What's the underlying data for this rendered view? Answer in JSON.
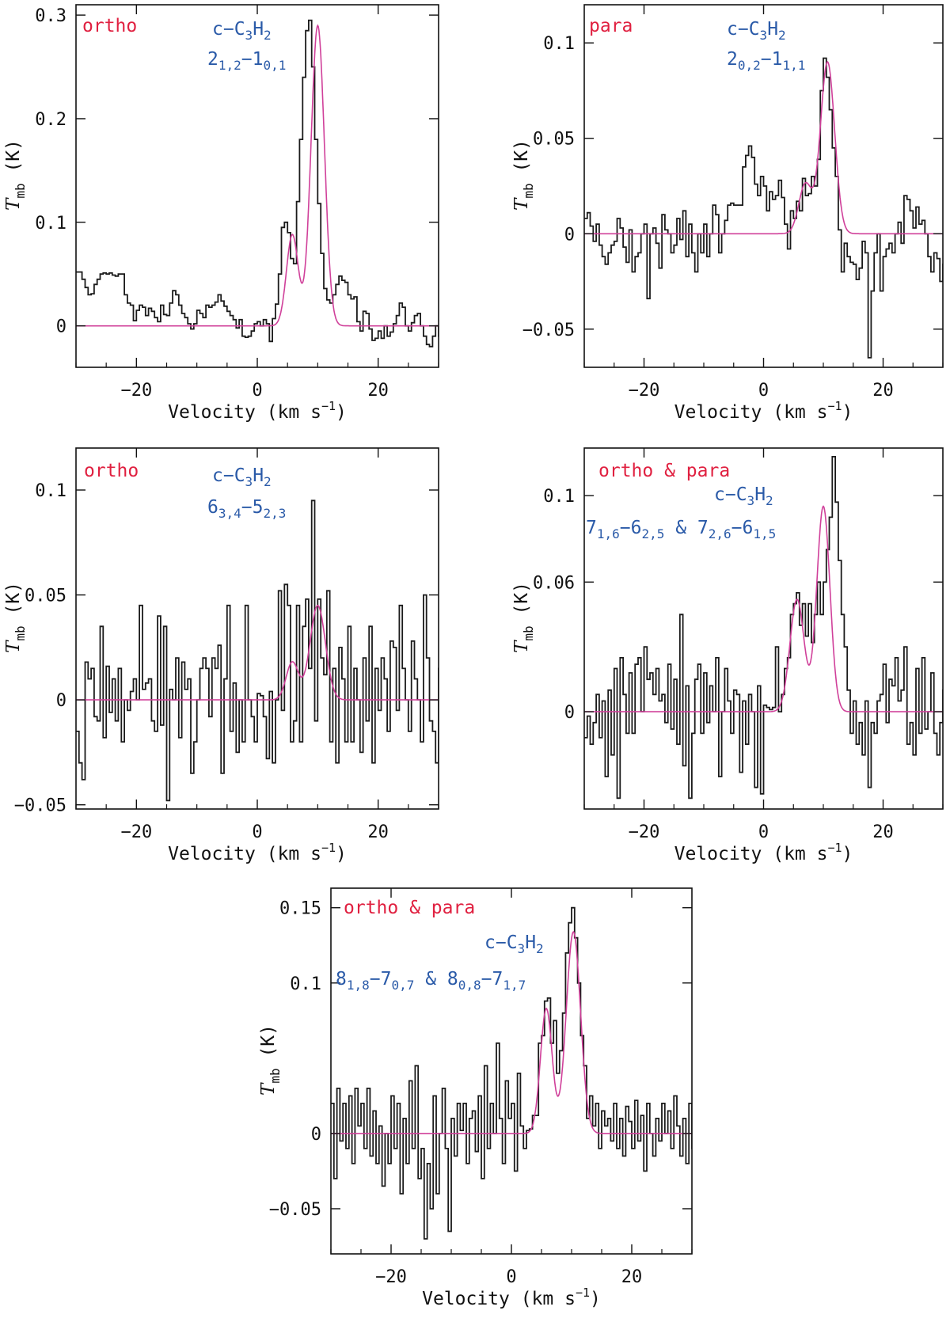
{
  "colors": {
    "axis": "#111111",
    "spectrum": "#1a1a1a",
    "fit": "#d0409a",
    "tag": "#e02040",
    "molecule": "#2a5aa8"
  },
  "chart_data": [
    {
      "type": "line",
      "id": "p1",
      "tag": "ortho",
      "molecule": {
        "prefix": "c−C",
        "sub1": "3",
        "mid": "H",
        "sub2": "2"
      },
      "transition": [
        {
          "t": "2",
          "sub": "1,2"
        },
        {
          "t": "−1",
          "sub": "0,1"
        }
      ],
      "xlabel": "Velocity (km s",
      "xlabel_sup": "−1",
      "xlabel_end": ")",
      "ylabel": "T",
      "ylabel_sub": "mb",
      "ylabel_unit": " (K)",
      "xlim": [
        -30,
        30
      ],
      "ylim": [
        -0.04,
        0.31
      ],
      "xticks": [
        -20,
        0,
        20
      ],
      "xtick_labels": [
        "−20",
        "0",
        "20"
      ],
      "yticks": [
        0,
        0.1,
        0.2,
        0.3
      ],
      "ytick_labels": [
        "0",
        "0.1",
        "0.2",
        "0.3"
      ],
      "fit": [
        {
          "amp": 0.088,
          "v0": 5.8,
          "fwhm": 2.3
        },
        {
          "amp": 0.29,
          "v0": 10.0,
          "fwhm": 2.6
        }
      ],
      "series": [
        {
          "name": "spectrum",
          "x0": -30,
          "dx": 0.5,
          "values": [
            0.052,
            0.052,
            0.045,
            0.037,
            0.03,
            0.031,
            0.04,
            0.045,
            0.05,
            0.051,
            0.05,
            0.051,
            0.049,
            0.048,
            0.05,
            0.05,
            0.03,
            0.022,
            0.02,
            0.005,
            0.015,
            0.02,
            0.018,
            0.01,
            0.017,
            0.014,
            0.008,
            0.004,
            0.02,
            0.011,
            0.01,
            0.022,
            0.034,
            0.03,
            0.02,
            0.012,
            0.008,
            0.002,
            -0.003,
            0.002,
            0.015,
            0.012,
            0.008,
            0.02,
            0.018,
            0.02,
            0.023,
            0.03,
            0.024,
            0.019,
            0.014,
            0.01,
            0.006,
            -0.002,
            0.006,
            -0.01,
            -0.011,
            -0.01,
            -0.005,
            0.002,
            0.004,
            0.0,
            0.006,
            0.002,
            -0.015,
            0.007,
            0.021,
            0.05,
            0.095,
            0.1,
            0.09,
            0.065,
            0.06,
            0.12,
            0.18,
            0.24,
            0.285,
            0.295,
            0.25,
            0.18,
            0.118,
            0.07,
            0.036,
            0.025,
            0.022,
            0.03,
            0.04,
            0.048,
            0.044,
            0.042,
            0.03,
            0.026,
            0.028,
            0.004,
            -0.005,
            0.014,
            0.012,
            -0.003,
            -0.014,
            -0.012,
            -0.005,
            -0.012,
            0.0,
            -0.01,
            -0.006,
            0.002,
            0.01,
            0.022,
            0.018,
            0.0,
            -0.005,
            0.003,
            0.01,
            0.012,
            0.0,
            -0.01,
            -0.018,
            -0.02,
            -0.01,
            0.0,
            -0.01
          ]
        }
      ]
    },
    {
      "type": "line",
      "id": "p2",
      "tag": "para",
      "molecule": {
        "prefix": "c−C",
        "sub1": "3",
        "mid": "H",
        "sub2": "2"
      },
      "transition": [
        {
          "t": "2",
          "sub": "0,2"
        },
        {
          "t": "−1",
          "sub": "1,1"
        }
      ],
      "xlabel": "Velocity (km s",
      "xlabel_sup": "−1",
      "xlabel_end": ")",
      "ylabel": "T",
      "ylabel_sub": "mb",
      "ylabel_unit": " (K)",
      "xlim": [
        -30,
        30
      ],
      "ylim": [
        -0.07,
        0.12
      ],
      "xticks": [
        -20,
        0,
        20
      ],
      "xtick_labels": [
        "−20",
        "0",
        "20"
      ],
      "yticks": [
        -0.05,
        0,
        0.05,
        0.1
      ],
      "ytick_labels": [
        "−0.05",
        "0",
        "0.05",
        "0.1"
      ],
      "fit": [
        {
          "amp": 0.026,
          "v0": 7.0,
          "fwhm": 2.6
        },
        {
          "amp": 0.09,
          "v0": 10.7,
          "fwhm": 2.8
        }
      ],
      "series": [
        {
          "name": "spectrum",
          "x0": -30,
          "dx": 0.5,
          "values": [
            0.008,
            0.011,
            0.004,
            -0.004,
            0.005,
            -0.006,
            -0.012,
            -0.016,
            -0.01,
            -0.006,
            -0.004,
            0.008,
            0.003,
            -0.007,
            -0.015,
            0.002,
            -0.02,
            -0.012,
            -0.01,
            0.0,
            0.005,
            -0.034,
            0.0,
            0.003,
            -0.005,
            -0.018,
            0.01,
            0.002,
            0.0,
            -0.01,
            -0.006,
            0.008,
            -0.003,
            0.012,
            -0.012,
            0.005,
            -0.01,
            -0.02,
            0.0,
            -0.01,
            0.005,
            -0.012,
            0.0,
            0.015,
            0.01,
            -0.01,
            0.0,
            0.007,
            0.015,
            0.016,
            0.015,
            0.015,
            0.015,
            0.035,
            0.041,
            0.046,
            0.04,
            0.026,
            0.02,
            0.03,
            0.025,
            0.012,
            0.022,
            0.018,
            0.02,
            0.028,
            0.019,
            0.005,
            -0.008,
            0.012,
            0.008,
            0.017,
            0.012,
            0.029,
            0.02,
            0.021,
            0.03,
            0.025,
            0.039,
            0.075,
            0.092,
            0.082,
            0.065,
            0.045,
            0.03,
            0.002,
            -0.02,
            -0.005,
            -0.012,
            -0.015,
            -0.016,
            -0.024,
            -0.018,
            -0.004,
            -0.01,
            -0.065,
            -0.03,
            -0.01,
            0.0,
            -0.03,
            -0.012,
            -0.008,
            -0.005,
            -0.01,
            0.0,
            0.006,
            -0.005,
            0.02,
            0.018,
            0.012,
            0.003,
            0.014,
            0.005,
            0.007,
            0.0,
            -0.012,
            -0.02,
            -0.01,
            -0.013,
            -0.025,
            -0.016
          ]
        }
      ]
    },
    {
      "type": "line",
      "id": "p3",
      "tag": "ortho",
      "molecule": {
        "prefix": "c−C",
        "sub1": "3",
        "mid": "H",
        "sub2": "2"
      },
      "transition": [
        {
          "t": "6",
          "sub": "3,4"
        },
        {
          "t": "−5",
          "sub": "2,3"
        }
      ],
      "xlabel": "Velocity (km s",
      "xlabel_sup": "−1",
      "xlabel_end": ")",
      "ylabel": "T",
      "ylabel_sub": "mb",
      "ylabel_unit": " (K)",
      "xlim": [
        -30,
        30
      ],
      "ylim": [
        -0.052,
        0.12
      ],
      "xticks": [
        -20,
        0,
        20
      ],
      "xtick_labels": [
        "−20",
        "0",
        "20"
      ],
      "yticks": [
        -0.05,
        0,
        0.05,
        0.1
      ],
      "ytick_labels": [
        "−0.05",
        "0",
        "0.05",
        "0.1"
      ],
      "fit": [
        {
          "amp": 0.018,
          "v0": 5.8,
          "fwhm": 2.4
        },
        {
          "amp": 0.045,
          "v0": 10.0,
          "fwhm": 3.0
        }
      ],
      "series": [
        {
          "name": "spectrum",
          "x0": -30,
          "dx": 0.5,
          "values": [
            -0.015,
            -0.03,
            -0.038,
            0.018,
            0.01,
            0.015,
            -0.008,
            -0.01,
            0.035,
            -0.018,
            0.016,
            -0.006,
            0.01,
            -0.01,
            0.015,
            -0.02,
            0.0,
            -0.005,
            0.004,
            0.01,
            0.0,
            0.045,
            0.005,
            0.008,
            0.01,
            -0.01,
            -0.015,
            0.04,
            -0.012,
            0.035,
            -0.048,
            0.005,
            0.0,
            0.02,
            -0.018,
            0.018,
            0.005,
            0.01,
            -0.035,
            -0.02,
            0.0,
            0.015,
            0.02,
            0.015,
            -0.008,
            0.02,
            0.015,
            0.026,
            -0.035,
            0.01,
            0.045,
            -0.015,
            0.008,
            -0.025,
            0.0,
            -0.02,
            0.045,
            0.0,
            -0.008,
            -0.02,
            0.003,
            0.002,
            -0.008,
            -0.028,
            0.004,
            -0.03,
            0.0,
            0.052,
            -0.005,
            0.055,
            0.045,
            -0.02,
            -0.01,
            0.045,
            -0.02,
            0.035,
            0.048,
            0.015,
            0.095,
            -0.01,
            0.048,
            0.02,
            0.012,
            0.052,
            -0.02,
            0.015,
            -0.03,
            0.025,
            0.01,
            -0.02,
            0.035,
            -0.02,
            0.015,
            0.0,
            -0.025,
            0.02,
            -0.01,
            0.035,
            -0.03,
            0.015,
            -0.005,
            0.02,
            0.01,
            -0.015,
            0.028,
            0.025,
            -0.005,
            0.045,
            0.015,
            0.0,
            -0.015,
            0.028,
            0.01,
            0.0,
            -0.02,
            0.05,
            0.02,
            -0.01,
            -0.015,
            -0.03,
            0.015
          ]
        }
      ]
    },
    {
      "type": "line",
      "id": "p4",
      "tag": "ortho & para",
      "molecule": {
        "prefix": "c−C",
        "sub1": "3",
        "mid": "H",
        "sub2": "2"
      },
      "transition": [
        {
          "t": "7",
          "sub": "1,6"
        },
        {
          "t": "−6",
          "sub": "2,5"
        },
        {
          "t": " & 7",
          "sub": "2,6"
        },
        {
          "t": "−6",
          "sub": "1,5"
        }
      ],
      "xlabel": "Velocity (km s",
      "xlabel_sup": "−1",
      "xlabel_end": ")",
      "ylabel": "T",
      "ylabel_sub": "mb",
      "ylabel_unit": " (K)",
      "xlim": [
        -30,
        30
      ],
      "ylim": [
        -0.045,
        0.122
      ],
      "xticks": [
        -20,
        0,
        20
      ],
      "xtick_labels": [
        "−20",
        "0",
        "20"
      ],
      "yticks": [
        0,
        0.06,
        0.1
      ],
      "ytick_labels": [
        "0",
        "0.06",
        "0.1"
      ],
      "fit": [
        {
          "amp": 0.052,
          "v0": 5.6,
          "fwhm": 2.8
        },
        {
          "amp": 0.095,
          "v0": 10.0,
          "fwhm": 2.6
        }
      ],
      "series": [
        {
          "name": "spectrum",
          "x0": -30,
          "dx": 0.5,
          "values": [
            -0.012,
            -0.002,
            -0.015,
            -0.005,
            0.008,
            -0.012,
            0.005,
            -0.03,
            0.01,
            -0.02,
            0.02,
            -0.04,
            0.025,
            0.008,
            -0.01,
            0.018,
            -0.01,
            0.022,
            0.025,
            0.0,
            0.03,
            0.015,
            0.018,
            0.008,
            0.02,
            0.005,
            0.008,
            -0.005,
            0.022,
            -0.008,
            0.015,
            -0.015,
            0.045,
            -0.025,
            0.012,
            -0.04,
            -0.01,
            0.015,
            0.022,
            -0.01,
            0.018,
            -0.005,
            0.012,
            0.0,
            0.025,
            -0.03,
            0.0,
            0.02,
            0.005,
            -0.01,
            0.01,
            0.008,
            -0.028,
            0.005,
            -0.015,
            0.008,
            0.0,
            -0.035,
            0.012,
            -0.038,
            0.003,
            0.002,
            0.001,
            0.002,
            0.03,
            0.0,
            0.008,
            0.02,
            0.025,
            0.045,
            0.05,
            0.055,
            0.04,
            0.05,
            0.035,
            0.05,
            0.032,
            0.045,
            0.06,
            0.045,
            0.06,
            0.075,
            0.09,
            0.118,
            0.097,
            0.07,
            0.045,
            0.03,
            0.01,
            -0.01,
            0.005,
            -0.015,
            -0.005,
            -0.02,
            0.005,
            -0.035,
            -0.005,
            -0.01,
            0.005,
            0.008,
            0.022,
            -0.005,
            0.015,
            0.012,
            0.025,
            0.005,
            0.01,
            0.03,
            -0.015,
            -0.005,
            -0.02,
            0.02,
            -0.01,
            0.025,
            -0.008,
            0.0,
            0.018,
            -0.01,
            -0.02,
            -0.005,
            0.01
          ]
        }
      ]
    },
    {
      "type": "line",
      "id": "p5",
      "tag": "ortho & para",
      "molecule": {
        "prefix": "c−C",
        "sub1": "3",
        "mid": "H",
        "sub2": "2"
      },
      "transition": [
        {
          "t": "8",
          "sub": "1,8"
        },
        {
          "t": "−7",
          "sub": "0,7"
        },
        {
          "t": " & 8",
          "sub": "0,8"
        },
        {
          "t": "−7",
          "sub": "1,7"
        }
      ],
      "xlabel": "Velocity (km s",
      "xlabel_sup": "−1",
      "xlabel_end": ")",
      "ylabel": "T",
      "ylabel_sub": "mb",
      "ylabel_unit": " (K)",
      "xlim": [
        -30,
        30
      ],
      "ylim": [
        -0.08,
        0.163
      ],
      "xticks": [
        -20,
        0,
        20
      ],
      "xtick_labels": [
        "−20",
        "0",
        "20"
      ],
      "yticks": [
        -0.05,
        0,
        0.1,
        0.15
      ],
      "ytick_labels": [
        "−0.05",
        "0",
        "0.1",
        "0.15"
      ],
      "fit": [
        {
          "amp": 0.083,
          "v0": 5.8,
          "fwhm": 2.3
        },
        {
          "amp": 0.134,
          "v0": 10.3,
          "fwhm": 2.8
        }
      ],
      "series": [
        {
          "name": "spectrum",
          "x0": -30,
          "dx": 0.5,
          "values": [
            0.02,
            -0.03,
            0.03,
            -0.005,
            0.02,
            -0.01,
            0.025,
            -0.02,
            0.03,
            0.005,
            0.02,
            -0.01,
            0.03,
            -0.015,
            0.015,
            -0.02,
            0.005,
            -0.035,
            0.0,
            -0.02,
            0.025,
            -0.01,
            0.02,
            -0.04,
            0.01,
            -0.02,
            0.035,
            -0.01,
            0.045,
            -0.03,
            -0.01,
            -0.07,
            -0.02,
            -0.05,
            0.025,
            -0.04,
            0.0,
            0.03,
            -0.01,
            -0.065,
            0.01,
            -0.015,
            0.02,
            0.002,
            0.02,
            -0.02,
            0.01,
            0.015,
            -0.012,
            0.025,
            -0.03,
            0.045,
            -0.01,
            0.02,
            0.0,
            0.06,
            0.01,
            -0.02,
            0.035,
            0.01,
            0.02,
            -0.025,
            0.04,
            0.005,
            -0.01,
            0.002,
            0.003,
            0.012,
            0.012,
            0.06,
            0.065,
            0.088,
            0.09,
            0.06,
            0.075,
            0.04,
            0.055,
            0.08,
            0.12,
            0.14,
            0.15,
            0.13,
            0.1,
            0.065,
            0.045,
            0.01,
            0.025,
            0.005,
            0.02,
            -0.01,
            0.015,
            0.005,
            0.01,
            -0.005,
            0.02,
            -0.01,
            0.01,
            -0.015,
            0.018,
            0.008,
            -0.01,
            0.022,
            -0.005,
            0.012,
            -0.025,
            0.02,
            0.0,
            -0.015,
            0.01,
            -0.005,
            0.02,
            0.0,
            0.015,
            -0.01,
            0.025,
            0.005,
            -0.015,
            0.01,
            -0.02,
            0.02,
            -0.01
          ]
        }
      ]
    }
  ]
}
